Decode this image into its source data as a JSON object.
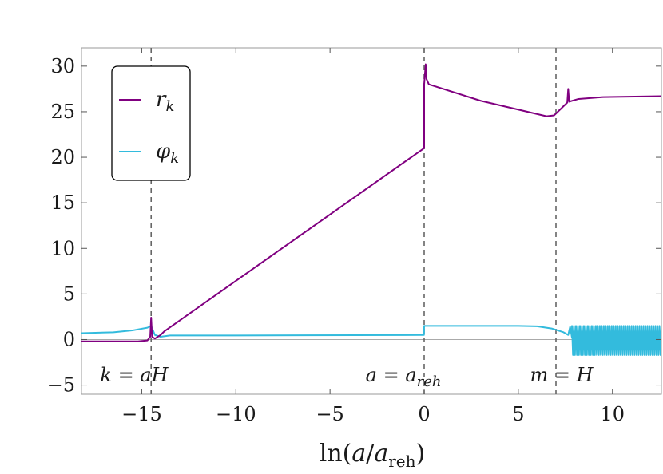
{
  "chart_data": {
    "type": "line",
    "xlabel": "ln(a/a_reh)",
    "xlabel_parts": {
      "prefix": "ln(",
      "a": "a",
      "slash": "/",
      "a2": "a",
      "sub": "reh",
      "suffix": ")"
    },
    "xlim": [
      -18.2,
      12.6
    ],
    "ylim": [
      -6,
      32
    ],
    "xticks": [
      -15,
      -10,
      -5,
      0,
      5,
      10
    ],
    "yticks": [
      -5,
      0,
      5,
      10,
      15,
      20,
      25,
      30
    ],
    "xtick_labels": [
      "−15",
      "−10",
      "−5",
      "0",
      "5",
      "10"
    ],
    "ytick_labels": [
      "−5",
      "0",
      "5",
      "10",
      "15",
      "20",
      "25",
      "30"
    ],
    "grid": false,
    "legend_placement": "top-left",
    "zero_line": true,
    "vlines": [
      {
        "x": -14.5,
        "label": "k = aH"
      },
      {
        "x": 0,
        "label": "a = a_reh"
      },
      {
        "x": 7,
        "label": "m = H"
      }
    ],
    "series": [
      {
        "name": "r_k",
        "color": "#800080",
        "points": [
          [
            -18.2,
            -0.2
          ],
          [
            -16,
            -0.2
          ],
          [
            -15.2,
            -0.2
          ],
          [
            -14.7,
            -0.1
          ],
          [
            -14.55,
            0.3
          ],
          [
            -14.5,
            2.4
          ],
          [
            -14.45,
            0.3
          ],
          [
            -14.3,
            0.1
          ],
          [
            -14.0,
            0.5
          ],
          [
            -13.8,
            0.9
          ],
          [
            0,
            21.0
          ],
          [
            0,
            28.0
          ],
          [
            0.08,
            30.2
          ],
          [
            0.12,
            28.6
          ],
          [
            0.25,
            28.0
          ],
          [
            3,
            26.2
          ],
          [
            6.5,
            24.5
          ],
          [
            6.9,
            24.6
          ],
          [
            7.3,
            25.4
          ],
          [
            7.6,
            26.0
          ],
          [
            7.65,
            27.5
          ],
          [
            7.7,
            26.1
          ],
          [
            8.2,
            26.4
          ],
          [
            9.5,
            26.6
          ],
          [
            12.6,
            26.7
          ]
        ]
      },
      {
        "name": "φ_k",
        "color": "#33BBDD",
        "points": [
          [
            -18.2,
            0.7
          ],
          [
            -16.5,
            0.8
          ],
          [
            -15.5,
            1.0
          ],
          [
            -14.7,
            1.3
          ],
          [
            -14.5,
            1.5
          ],
          [
            -14.3,
            0.5
          ],
          [
            -14.0,
            0.3
          ],
          [
            -13.5,
            0.45
          ],
          [
            -10,
            0.45
          ],
          [
            -0.01,
            0.5
          ],
          [
            0,
            1.5
          ],
          [
            5,
            1.5
          ],
          [
            6.0,
            1.45
          ],
          [
            6.8,
            1.2
          ],
          [
            7.4,
            0.8
          ],
          [
            7.65,
            0.5
          ],
          [
            7.75,
            1.4
          ],
          [
            7.85,
            0.2
          ]
        ],
        "oscillation": {
          "x_start": 7.85,
          "x_end": 12.6,
          "min": -1.7,
          "max": 1.5
        }
      }
    ]
  }
}
